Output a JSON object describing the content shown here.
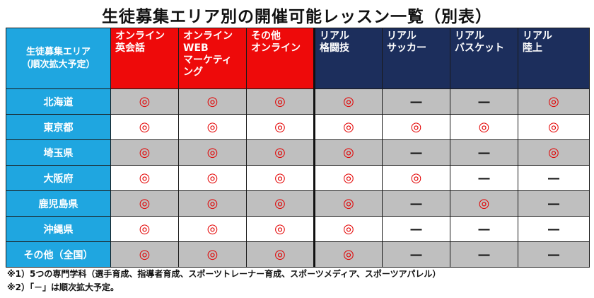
{
  "title": "生徒募集エリア別の開催可能レッスン一覧（別表）",
  "header": {
    "area_label_line1": "生徒募集エリア",
    "area_label_line2": "（順次拡大予定）",
    "columns": [
      {
        "lines": [
          "オンライン",
          "英会話"
        ],
        "group": "online"
      },
      {
        "lines": [
          "オンライン",
          "WEB",
          "マーケティ",
          "ング"
        ],
        "group": "online"
      },
      {
        "lines": [
          "その他",
          "オンライン"
        ],
        "group": "online"
      },
      {
        "lines": [
          "リアル",
          "格闘技"
        ],
        "group": "real"
      },
      {
        "lines": [
          "リアル",
          "サッカー"
        ],
        "group": "real"
      },
      {
        "lines": [
          "リアル",
          "バスケット"
        ],
        "group": "real"
      },
      {
        "lines": [
          "リアル",
          "陸上"
        ],
        "group": "real"
      }
    ]
  },
  "symbols": {
    "available": "◎",
    "not_available": "―"
  },
  "rows": [
    {
      "area": "北海道",
      "marks": [
        "◎",
        "◎",
        "◎",
        "◎",
        "―",
        "―",
        "◎"
      ]
    },
    {
      "area": "東京都",
      "marks": [
        "◎",
        "◎",
        "◎",
        "◎",
        "◎",
        "◎",
        "◎"
      ]
    },
    {
      "area": "埼玉県",
      "marks": [
        "◎",
        "◎",
        "◎",
        "◎",
        "―",
        "―",
        "◎"
      ]
    },
    {
      "area": "大阪府",
      "marks": [
        "◎",
        "◎",
        "◎",
        "◎",
        "◎",
        "―",
        "―"
      ]
    },
    {
      "area": "鹿児島県",
      "marks": [
        "◎",
        "◎",
        "◎",
        "◎",
        "―",
        "◎",
        "―"
      ]
    },
    {
      "area": "沖縄県",
      "marks": [
        "◎",
        "◎",
        "◎",
        "◎",
        "―",
        "―",
        "―"
      ]
    },
    {
      "area": "その他（全国）",
      "marks": [
        "◎",
        "◎",
        "◎",
        "◎",
        "―",
        "―",
        "―"
      ]
    }
  ],
  "notes": [
    "※1）5つの専門学科（選手育成、指導者育成、スポーツトレーナー育成、スポーツメディア、スポーツアパレル）",
    "※2）「－」は順次拡大予定。"
  ],
  "colors": {
    "area_blue": "#1fa6e0",
    "online_red": "#ee0a0a",
    "real_navy": "#1c2e5c",
    "mark_red": "#e30000",
    "row_gray": "#bfbfbf"
  }
}
